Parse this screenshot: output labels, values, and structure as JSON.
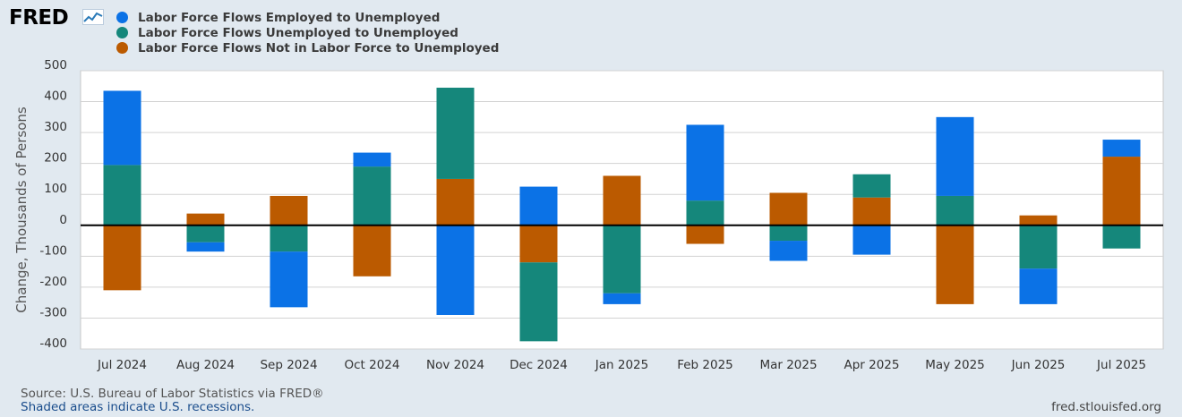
{
  "header": {
    "logo_text": "FRED",
    "logo_icon": "line-chart-icon"
  },
  "legend": [
    {
      "label": "Labor Force Flows Employed to Unemployed",
      "color": "#0b72e6"
    },
    {
      "label": "Labor Force Flows Unemployed to Unemployed",
      "color": "#15877b"
    },
    {
      "label": "Labor Force Flows Not in Labor Force to Unemployed",
      "color": "#bb5a00"
    }
  ],
  "chart_data": {
    "type": "bar",
    "stacked": true,
    "ylabel": "Change, Thousands of Persons",
    "ylim": [
      -400,
      500
    ],
    "yticks": [
      500,
      400,
      300,
      200,
      100,
      0,
      -100,
      -200,
      -300,
      -400
    ],
    "grid": true,
    "categories": [
      "Jul 2024",
      "Aug 2024",
      "Sep 2024",
      "Oct 2024",
      "Nov 2024",
      "Dec 2024",
      "Jan 2025",
      "Feb 2025",
      "Mar 2025",
      "Apr 2025",
      "May 2025",
      "Jun 2025",
      "Jul 2025"
    ],
    "series": [
      {
        "name": "Labor Force Flows Employed to Unemployed",
        "color": "#0b72e6",
        "values": [
          240,
          -30,
          -180,
          45,
          -290,
          125,
          -35,
          245,
          -65,
          -95,
          255,
          -115,
          55
        ]
      },
      {
        "name": "Labor Force Flows Unemployed to Unemployed",
        "color": "#15877b",
        "values": [
          195,
          -55,
          -85,
          190,
          295,
          -255,
          -220,
          80,
          -50,
          75,
          95,
          -140,
          -75
        ]
      },
      {
        "name": "Labor Force Flows Not in Labor Force to Unemployed",
        "color": "#bb5a00",
        "values": [
          -210,
          38,
          95,
          -165,
          150,
          -120,
          160,
          -60,
          105,
          90,
          -255,
          32,
          222
        ]
      }
    ]
  },
  "footer": {
    "source": "Source: U.S. Bureau of Labor Statistics via FRED®",
    "recession_note": "Shaded areas indicate U.S. recessions.",
    "site": "fred.stlouisfed.org"
  }
}
